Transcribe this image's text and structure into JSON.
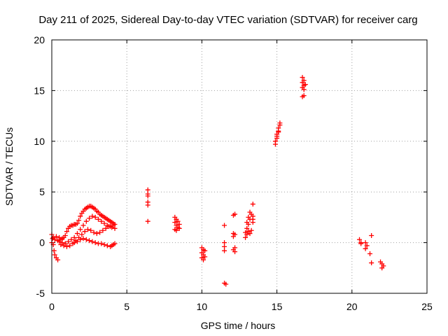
{
  "chart_data": {
    "type": "scatter",
    "title": "Day 211 of 2025, Sidereal Day-to-day VTEC variation (SDTVAR) for receiver carg",
    "xlabel": "GPS time / hours",
    "ylabel": "SDTVAR / TECUs",
    "xlim": [
      0,
      25
    ],
    "ylim": [
      -5,
      20
    ],
    "xticks": [
      "0",
      "5",
      "10",
      "15",
      "20",
      "25"
    ],
    "yticks": [
      "-5",
      "0",
      "5",
      "10",
      "15",
      "20"
    ],
    "grid": true,
    "marker": "+",
    "color": "#ff0000",
    "series": [
      {
        "name": "SDTVAR",
        "points": [
          [
            0.0,
            0.8
          ],
          [
            0.05,
            0.4
          ],
          [
            0.1,
            -0.2
          ],
          [
            0.15,
            -0.8
          ],
          [
            0.2,
            -1.2
          ],
          [
            0.3,
            -1.5
          ],
          [
            0.4,
            -1.7
          ],
          [
            0.0,
            0.0
          ],
          [
            0.1,
            0.5
          ],
          [
            0.2,
            0.3
          ],
          [
            0.3,
            0.6
          ],
          [
            0.4,
            0.2
          ],
          [
            0.5,
            0.5
          ],
          [
            0.6,
            0.3
          ],
          [
            0.7,
            0.4
          ],
          [
            0.8,
            0.5
          ],
          [
            0.9,
            0.7
          ],
          [
            1.0,
            1.1
          ],
          [
            1.1,
            1.4
          ],
          [
            1.2,
            1.6
          ],
          [
            1.3,
            1.7
          ],
          [
            1.4,
            1.7
          ],
          [
            1.5,
            1.8
          ],
          [
            1.6,
            1.8
          ],
          [
            1.7,
            1.9
          ],
          [
            1.8,
            2.2
          ],
          [
            1.9,
            2.6
          ],
          [
            2.0,
            2.9
          ],
          [
            2.1,
            3.1
          ],
          [
            2.2,
            3.3
          ],
          [
            2.3,
            3.4
          ],
          [
            2.4,
            3.5
          ],
          [
            2.5,
            3.6
          ],
          [
            2.6,
            3.6
          ],
          [
            2.7,
            3.5
          ],
          [
            2.8,
            3.4
          ],
          [
            2.9,
            3.3
          ],
          [
            3.0,
            3.1
          ],
          [
            3.1,
            3.0
          ],
          [
            3.2,
            2.8
          ],
          [
            3.3,
            2.7
          ],
          [
            3.4,
            2.6
          ],
          [
            3.5,
            2.5
          ],
          [
            3.6,
            2.4
          ],
          [
            3.7,
            2.3
          ],
          [
            3.8,
            2.2
          ],
          [
            3.9,
            2.1
          ],
          [
            4.0,
            2.0
          ],
          [
            4.1,
            1.9
          ],
          [
            0.5,
            0.1
          ],
          [
            0.7,
            0.0
          ],
          [
            0.9,
            -0.1
          ],
          [
            1.1,
            0.1
          ],
          [
            1.3,
            0.3
          ],
          [
            1.5,
            0.5
          ],
          [
            1.7,
            0.9
          ],
          [
            1.9,
            1.3
          ],
          [
            2.1,
            1.7
          ],
          [
            2.3,
            2.1
          ],
          [
            2.5,
            2.4
          ],
          [
            2.7,
            2.6
          ],
          [
            2.9,
            2.5
          ],
          [
            3.1,
            2.3
          ],
          [
            3.3,
            2.1
          ],
          [
            3.5,
            1.9
          ],
          [
            3.7,
            1.7
          ],
          [
            3.9,
            1.6
          ],
          [
            4.1,
            1.7
          ],
          [
            4.2,
            1.8
          ],
          [
            0.6,
            -0.2
          ],
          [
            0.8,
            -0.3
          ],
          [
            1.0,
            -0.4
          ],
          [
            1.2,
            -0.3
          ],
          [
            1.4,
            -0.1
          ],
          [
            1.6,
            0.2
          ],
          [
            1.8,
            0.5
          ],
          [
            2.0,
            0.8
          ],
          [
            2.2,
            1.1
          ],
          [
            2.4,
            1.3
          ],
          [
            2.6,
            1.2
          ],
          [
            2.8,
            1.0
          ],
          [
            3.0,
            0.9
          ],
          [
            3.2,
            1.0
          ],
          [
            3.4,
            1.2
          ],
          [
            3.6,
            1.4
          ],
          [
            3.8,
            1.6
          ],
          [
            4.0,
            1.5
          ],
          [
            4.2,
            1.4
          ],
          [
            1.5,
            0.0
          ],
          [
            1.7,
            0.1
          ],
          [
            1.9,
            0.3
          ],
          [
            2.1,
            0.4
          ],
          [
            2.3,
            0.3
          ],
          [
            2.5,
            0.2
          ],
          [
            2.7,
            0.1
          ],
          [
            2.9,
            0.0
          ],
          [
            3.1,
            -0.1
          ],
          [
            3.3,
            -0.1
          ],
          [
            3.5,
            -0.2
          ],
          [
            3.7,
            -0.3
          ],
          [
            3.9,
            -0.4
          ],
          [
            4.0,
            -0.3
          ],
          [
            4.1,
            -0.2
          ],
          [
            4.2,
            -0.1
          ],
          [
            6.4,
            5.2
          ],
          [
            6.4,
            4.8
          ],
          [
            6.4,
            4.6
          ],
          [
            6.4,
            4.0
          ],
          [
            6.4,
            3.7
          ],
          [
            6.4,
            2.1
          ],
          [
            8.2,
            2.5
          ],
          [
            8.3,
            2.3
          ],
          [
            8.2,
            2.0
          ],
          [
            8.3,
            1.7
          ],
          [
            8.4,
            1.5
          ],
          [
            8.3,
            1.2
          ],
          [
            8.5,
            1.4
          ],
          [
            8.4,
            2.1
          ],
          [
            8.5,
            1.8
          ],
          [
            8.2,
            1.3
          ],
          [
            10.0,
            -0.5
          ],
          [
            10.1,
            -0.7
          ],
          [
            10.0,
            -1.0
          ],
          [
            10.1,
            -1.2
          ],
          [
            10.0,
            -1.5
          ],
          [
            10.2,
            -1.4
          ],
          [
            10.2,
            -0.8
          ],
          [
            10.1,
            -1.7
          ],
          [
            11.5,
            1.7
          ],
          [
            11.5,
            0.0
          ],
          [
            11.5,
            -0.4
          ],
          [
            11.5,
            -0.8
          ],
          [
            11.5,
            -4.0
          ],
          [
            11.6,
            -4.1
          ],
          [
            12.1,
            2.7
          ],
          [
            12.2,
            2.8
          ],
          [
            12.1,
            0.9
          ],
          [
            12.2,
            0.8
          ],
          [
            12.1,
            0.6
          ],
          [
            12.2,
            -0.5
          ],
          [
            12.1,
            -0.7
          ],
          [
            12.2,
            -0.9
          ],
          [
            12.9,
            0.5
          ],
          [
            13.0,
            0.8
          ],
          [
            12.9,
            1.0
          ],
          [
            13.0,
            1.4
          ],
          [
            13.1,
            1.8
          ],
          [
            13.2,
            2.3
          ],
          [
            13.3,
            2.8
          ],
          [
            13.0,
            2.0
          ],
          [
            13.1,
            2.5
          ],
          [
            13.2,
            3.0
          ],
          [
            13.1,
            1.1
          ],
          [
            13.2,
            0.9
          ],
          [
            13.4,
            3.8
          ],
          [
            13.4,
            2.6
          ],
          [
            13.4,
            2.3
          ],
          [
            13.4,
            2.0
          ],
          [
            13.3,
            1.2
          ],
          [
            14.9,
            9.7
          ],
          [
            14.9,
            10.0
          ],
          [
            15.0,
            10.3
          ],
          [
            15.0,
            10.7
          ],
          [
            15.1,
            11.0
          ],
          [
            15.1,
            11.3
          ],
          [
            15.2,
            11.6
          ],
          [
            15.2,
            11.8
          ],
          [
            15.0,
            10.5
          ],
          [
            15.1,
            10.9
          ],
          [
            16.7,
            16.3
          ],
          [
            16.8,
            16.0
          ],
          [
            16.7,
            15.8
          ],
          [
            16.8,
            15.5
          ],
          [
            16.7,
            15.3
          ],
          [
            16.8,
            15.1
          ],
          [
            16.9,
            15.6
          ],
          [
            16.7,
            14.4
          ],
          [
            16.8,
            14.5
          ],
          [
            20.5,
            0.3
          ],
          [
            20.6,
            0.0
          ],
          [
            20.6,
            -0.1
          ],
          [
            20.9,
            0.0
          ],
          [
            21.0,
            -0.3
          ],
          [
            20.9,
            -0.6
          ],
          [
            21.3,
            0.7
          ],
          [
            21.2,
            -1.1
          ],
          [
            21.3,
            -2.0
          ],
          [
            21.9,
            -1.9
          ],
          [
            22.0,
            -2.1
          ],
          [
            22.1,
            -2.3
          ],
          [
            22.0,
            -2.5
          ]
        ]
      }
    ]
  }
}
